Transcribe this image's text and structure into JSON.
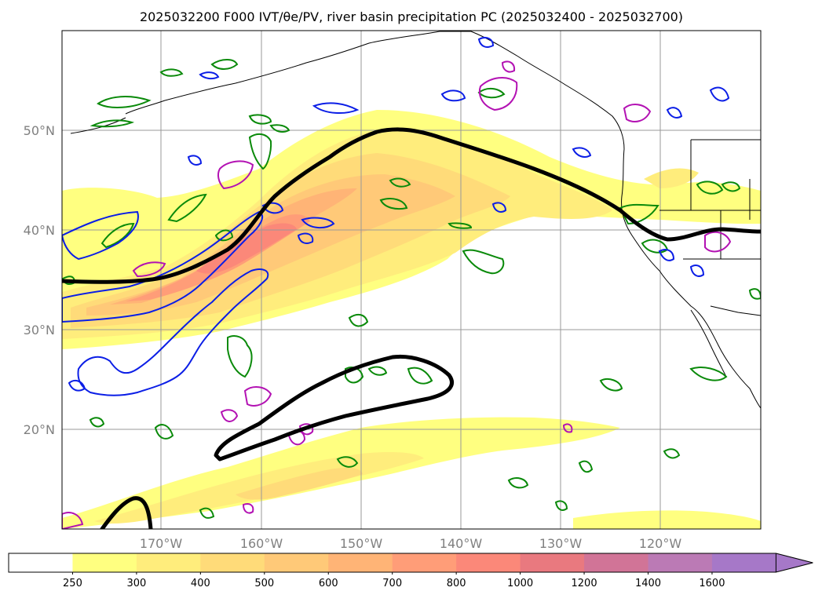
{
  "title": "2025032200 F000 IVT/θe/PV, river basin precipitation PC (2025032400 - 2025032700)",
  "map": {
    "projection": "PlateCarree",
    "lon_range": [
      "180°",
      "110°W"
    ],
    "lat_range": [
      "10°N",
      "60°N"
    ],
    "grid": true,
    "lat_labels": [
      "50°N",
      "40°N",
      "30°N",
      "20°N"
    ],
    "lon_labels": [
      "170°W",
      "160°W",
      "150°W",
      "140°W",
      "130°W",
      "120°W"
    ],
    "fields": {
      "ivt_fill": "IVT shaded (yellow to purple)",
      "theta_e_contour": "black thick line",
      "pv_contours": [
        "green",
        "blue",
        "magenta"
      ]
    },
    "colors": {
      "coastline": "#000000",
      "gridline": "#999999",
      "theta_e": "#000000",
      "green_contour": "#0a8a0a",
      "blue_contour": "#0b1ee6",
      "magenta_contour": "#b312b3"
    }
  },
  "colorbar": {
    "extend": "max",
    "levels": [
      "250",
      "300",
      "400",
      "500",
      "600",
      "700",
      "800",
      "1000",
      "1200",
      "1400",
      "1600"
    ],
    "colors": [
      "#ffffff",
      "#ffff80",
      "#ffed7c",
      "#ffdb79",
      "#ffc978",
      "#ffb476",
      "#ff9d78",
      "#fb8879",
      "#e9797f",
      "#d17497",
      "#bb7ab5",
      "#a678c8"
    ]
  }
}
